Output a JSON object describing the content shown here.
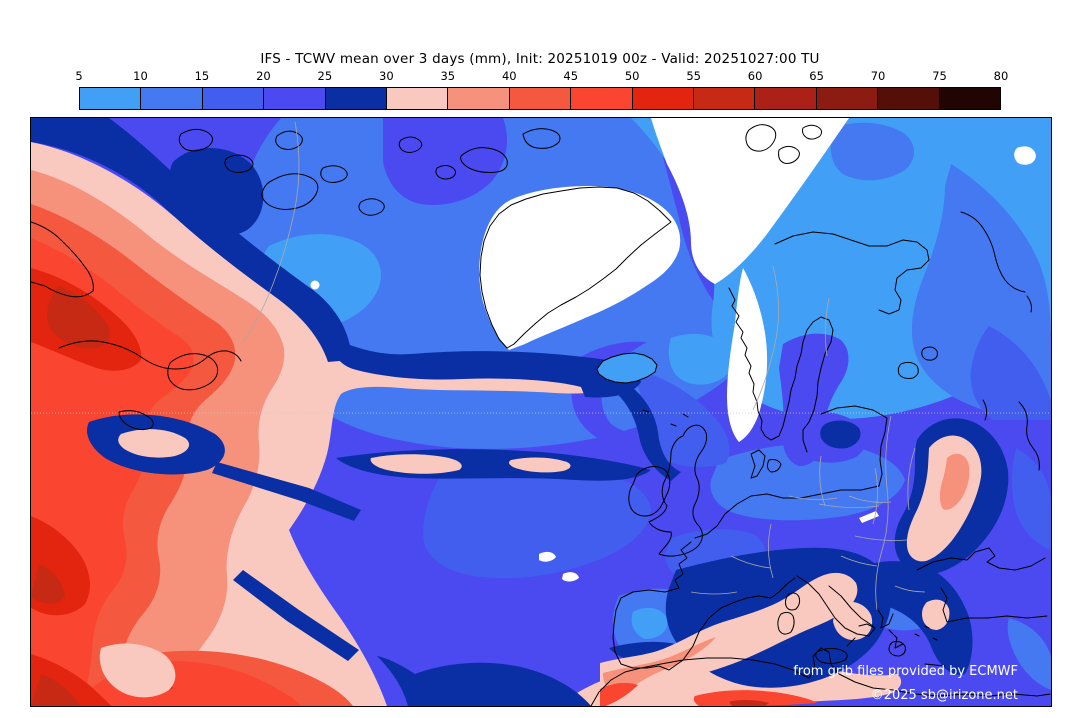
{
  "title": "IFS - TCWV mean over 3 days (mm), Init: 20251019 00z - Valid: 20251027:00 TU",
  "colorbar": {
    "ticks": [
      "5",
      "10",
      "15",
      "20",
      "25",
      "30",
      "35",
      "40",
      "45",
      "50",
      "55",
      "60",
      "65",
      "70",
      "75",
      "80"
    ],
    "bin_colors": [
      "#41A0F6",
      "#4479F2",
      "#415EEF",
      "#4A4AF0",
      "#0A2FA4",
      "#F9C9BF",
      "#F6917C",
      "#F4593F",
      "#FA4631",
      "#E3240E",
      "#C62A14",
      "#AC2117",
      "#8C1B12",
      "#541008",
      "#200503"
    ]
  },
  "palette": {
    "c1": "#41A0F6",
    "c2": "#4479F2",
    "c3": "#415EEF",
    "c4": "#4A4AF0",
    "c5": "#0A2FA4",
    "c6": "#F9C9BF",
    "c7": "#F6917C",
    "c8": "#F4593F",
    "c9": "#FA4631",
    "c10": "#E3240E",
    "c11": "#C62A14",
    "c12": "#AC2117",
    "c13": "#8C1B12",
    "c14": "#541008",
    "c15": "#200503",
    "white": "#FFFFFF",
    "coast": "#000000",
    "border": "#A9A9A9",
    "grid": "#C9C9C9",
    "frame": "#000000",
    "attribution": "#FFFFFF"
  },
  "map": {
    "attribution_line1": "from grib files provided by ECMWF",
    "attribution_line2": "©2025 sb@irizone.net"
  },
  "chart_data": {
    "type": "heatmap",
    "subtype": "filled_contour_weather_map",
    "title": "IFS - TCWV mean over 3 days (mm), Init: 20251019 00z - Valid: 20251027:00 TU",
    "variable": "Total column water vapour, 3-day mean",
    "units": "mm",
    "model": "IFS (ECMWF)",
    "init": "20251019 00z",
    "valid": "20251027:00 TU",
    "levels": [
      5,
      10,
      15,
      20,
      25,
      30,
      35,
      40,
      45,
      50,
      55,
      60,
      65,
      70,
      75,
      80
    ],
    "palette": [
      "#41A0F6",
      "#4479F2",
      "#415EEF",
      "#4A4AF0",
      "#0A2FA4",
      "#F9C9BF",
      "#F6917C",
      "#F4593F",
      "#FA4631",
      "#E3240E",
      "#C62A14",
      "#AC2117",
      "#8C1B12",
      "#541008",
      "#200503"
    ],
    "region": "North Atlantic, Greenland, Iceland, Europe, Mediterranean, North Africa",
    "legend_position": "top",
    "features": [
      {
        "area": "Western Atlantic off North America",
        "value_mm": "35-60 with dark cores >55"
      },
      {
        "area": "Frontal filament bands across mid-Atlantic",
        "value_mm": "25-35"
      },
      {
        "area": "Central/subtropical Atlantic and western Europe",
        "value_mm": "15-25"
      },
      {
        "area": "Nordic seas, Barents Sea",
        "value_mm": "5-15"
      },
      {
        "area": "Greenland ice sheet, Arctic, Norwegian mountains, Alps",
        "value_mm": "<5 (white)"
      },
      {
        "area": "Morocco-Algeria-Italy band and Black Sea band",
        "value_mm": "30-40"
      }
    ]
  }
}
